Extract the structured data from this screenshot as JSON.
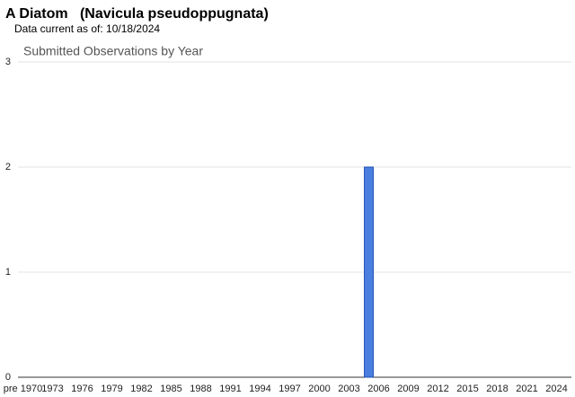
{
  "header": {
    "title": "A Diatom   (Navicula pseudoppugnata)",
    "subtitle": "Data current as of: 10/18/2024"
  },
  "chart_data": {
    "type": "bar",
    "title": "Submitted Observations by Year",
    "categories": [
      "pre 1970",
      null,
      null,
      "1973",
      null,
      null,
      "1976",
      null,
      null,
      "1979",
      null,
      null,
      "1982",
      null,
      null,
      "1985",
      null,
      null,
      "1988",
      null,
      null,
      "1991",
      null,
      null,
      "1994",
      null,
      null,
      "1997",
      null,
      null,
      "2000",
      null,
      null,
      "2003",
      null,
      null,
      "2006",
      null,
      null,
      "2009",
      null,
      null,
      "2012",
      null,
      null,
      "2015",
      null,
      null,
      "2018",
      null,
      null,
      "2021",
      null,
      null,
      "2024",
      null
    ],
    "values": [
      0,
      0,
      0,
      0,
      0,
      0,
      0,
      0,
      0,
      0,
      0,
      0,
      0,
      0,
      0,
      0,
      0,
      0,
      0,
      0,
      0,
      0,
      0,
      0,
      0,
      0,
      0,
      0,
      0,
      0,
      0,
      0,
      0,
      0,
      0,
      2,
      0,
      0,
      0,
      0,
      0,
      0,
      0,
      0,
      0,
      0,
      0,
      0,
      0,
      0,
      0,
      0,
      0,
      0,
      0,
      0
    ],
    "color": "#4a7fe0",
    "ylim": [
      0,
      3
    ],
    "yticks": [
      0,
      1,
      2,
      3
    ],
    "grid": true
  }
}
